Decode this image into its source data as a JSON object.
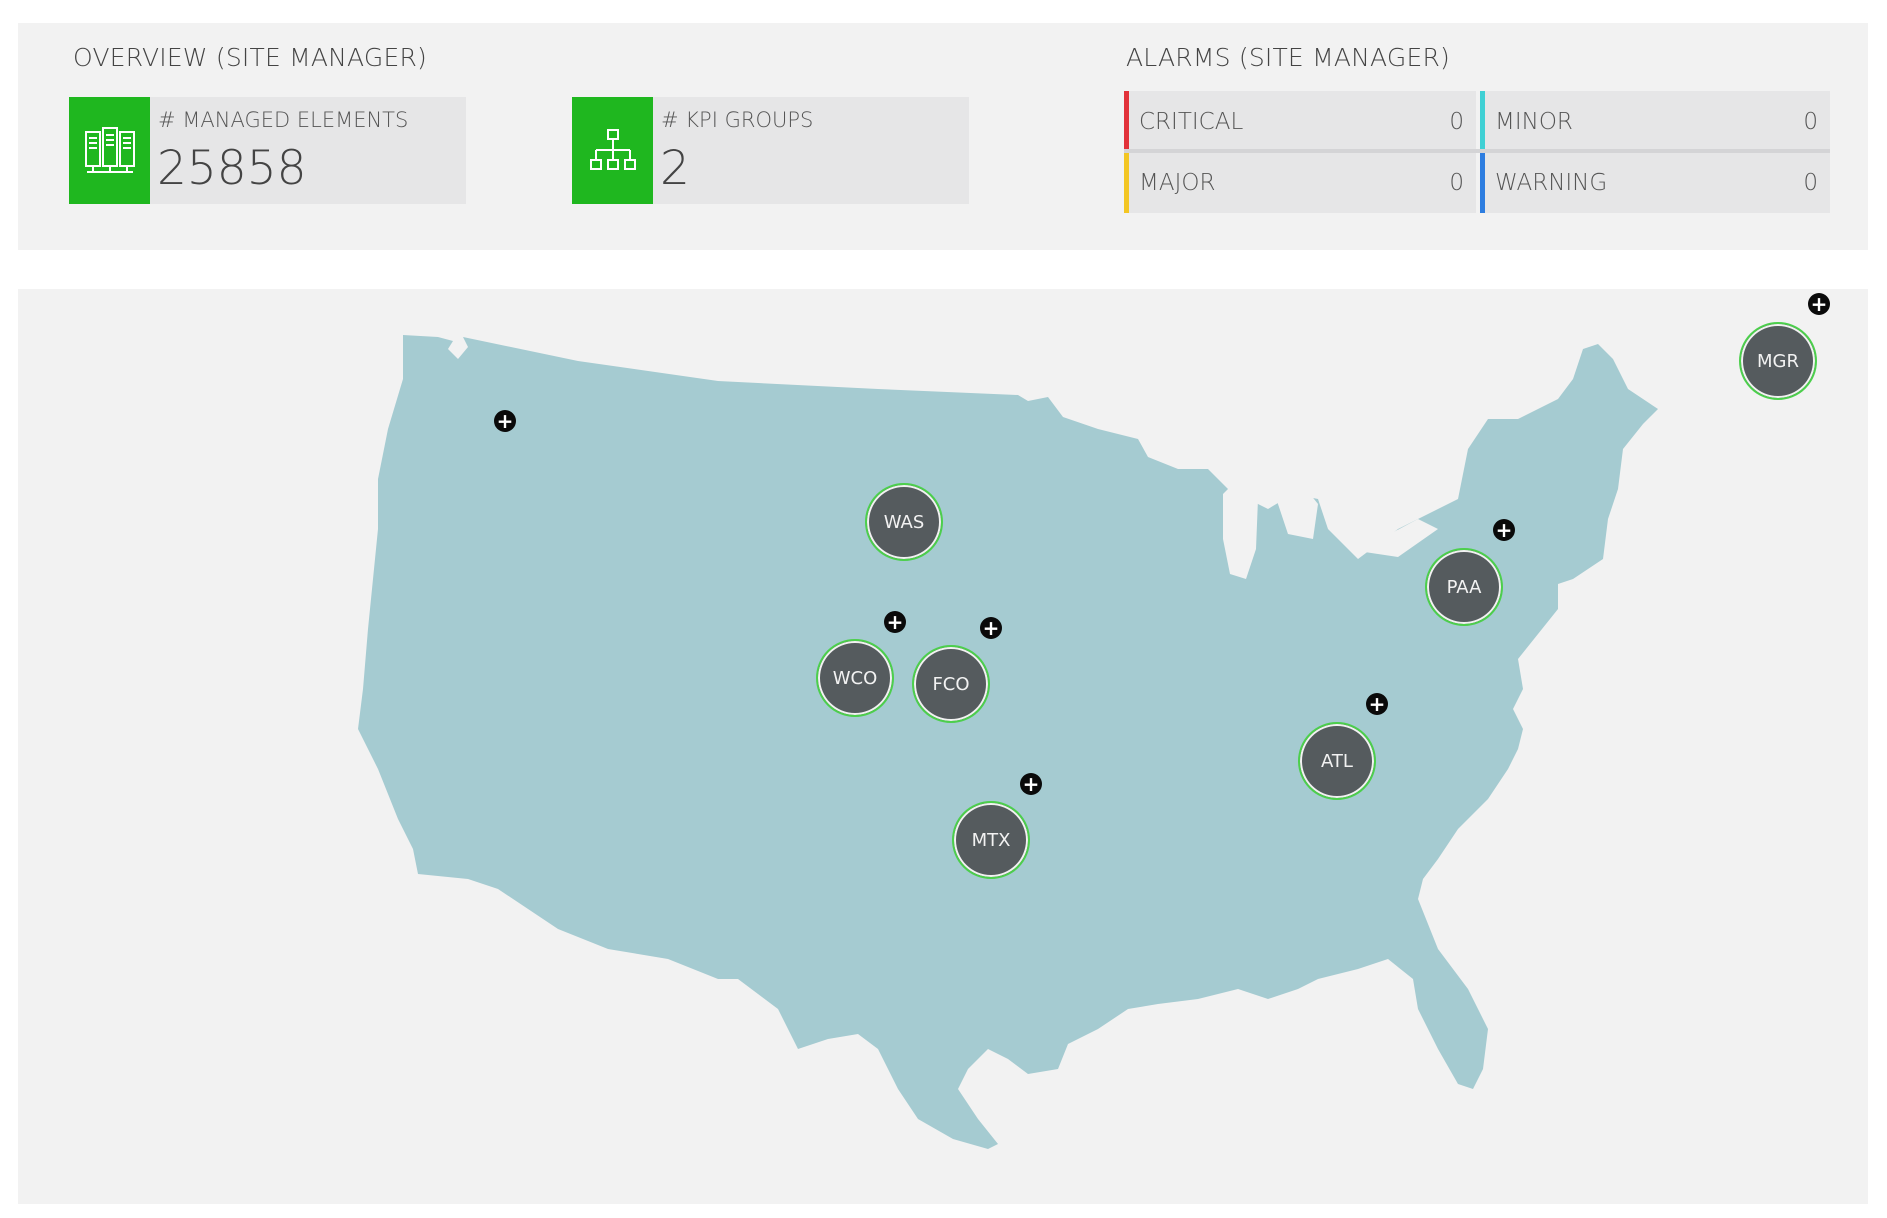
{
  "overview": {
    "title": "OVERVIEW (SITE MANAGER)",
    "tiles": [
      {
        "label": "# MANAGED ELEMENTS",
        "value": "25858",
        "icon": "servers-icon"
      },
      {
        "label": "# KPI GROUPS",
        "value": "2",
        "icon": "hierarchy-icon"
      }
    ],
    "accent_color": "#1fb71f"
  },
  "alarms": {
    "title": "ALARMS (SITE MANAGER)",
    "items": [
      {
        "label": "CRITICAL",
        "count": "0",
        "color": "#e2323a"
      },
      {
        "label": "MINOR",
        "count": "0",
        "color": "#3fd0d4"
      },
      {
        "label": "MAJOR",
        "count": "0",
        "color": "#f3c623"
      },
      {
        "label": "WARNING",
        "count": "0",
        "color": "#2d7de0"
      }
    ]
  },
  "map": {
    "region_color": "#a5cbd1",
    "expand_icon": "plus-icon",
    "sites": [
      {
        "code": "WAS",
        "expandable": false
      },
      {
        "code": "WCO",
        "expandable": true
      },
      {
        "code": "FCO",
        "expandable": true
      },
      {
        "code": "MTX",
        "expandable": true
      },
      {
        "code": "ATL",
        "expandable": true
      },
      {
        "code": "PAA",
        "expandable": true
      },
      {
        "code": "MGR",
        "expandable": true
      }
    ]
  }
}
